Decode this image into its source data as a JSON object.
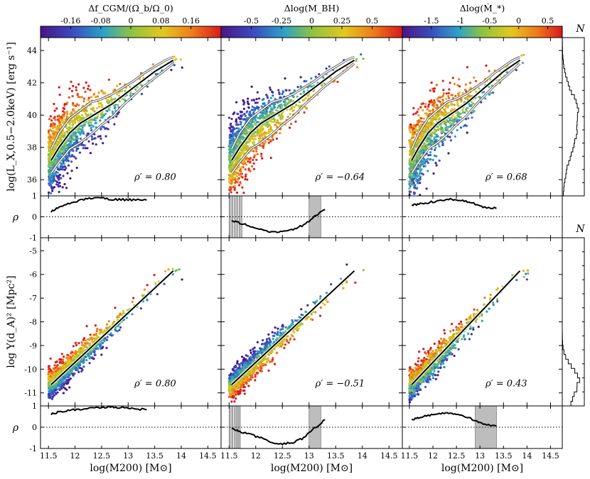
{
  "chart_data": {
    "type": "scatter",
    "description_colormap": "rainbow (purple-blue-green-yellow-orange-red)",
    "xlabel": "log(M200) [M⊙]",
    "xlim": [
      11.35,
      14.75
    ],
    "xticks": [
      11.5,
      12,
      12.5,
      13,
      13.5,
      14,
      14.5
    ],
    "xtick_labels": [
      "11.5",
      "12",
      "12.5",
      "13",
      "13.5",
      "14",
      "14.5"
    ],
    "top_rows": {
      "lx": {
        "ylabel": "log(L_X,0.5−2.0keV) [erg s⁻¹]",
        "ylim": [
          35.0,
          44.8
        ],
        "yticks": [
          36,
          38,
          40,
          42,
          44
        ],
        "ytick_labels": [
          "36",
          "38",
          "40",
          "42",
          "44"
        ],
        "median_x": [
          11.55,
          11.7,
          11.9,
          12.1,
          12.3,
          12.5,
          12.7,
          12.9,
          13.1,
          13.3,
          13.5,
          13.7,
          13.85
        ],
        "median_y": [
          37.2,
          38.0,
          38.9,
          39.5,
          39.9,
          40.3,
          40.7,
          41.2,
          41.7,
          42.2,
          42.7,
          43.1,
          43.4
        ],
        "spread_lo": [
          36.4,
          37.1,
          37.9,
          38.3,
          38.8,
          39.4,
          39.9,
          40.6,
          41.2,
          41.8,
          42.3,
          42.8,
          43.2
        ],
        "spread_hi": [
          37.9,
          38.9,
          39.8,
          40.3,
          40.8,
          41.0,
          41.3,
          41.7,
          42.1,
          42.6,
          43.0,
          43.4,
          43.6
        ]
      },
      "y": {
        "ylabel": "log Y(d_A)² [Mpc²]",
        "ylim": [
          -11.55,
          -4.45
        ],
        "yticks": [
          -11,
          -10,
          -9,
          -8,
          -7,
          -6,
          -5
        ],
        "ytick_labels": [
          "-11",
          "-10",
          "-9",
          "-8",
          "-7",
          "-6",
          "-5"
        ],
        "median_x": [
          11.55,
          13.85
        ],
        "median_y": [
          -10.65,
          -5.85
        ],
        "scatter_sigma": 0.28
      }
    },
    "rho_panels": {
      "ylabel": "ρ",
      "ylim": [
        -1,
        1
      ],
      "yticks": [
        1,
        0,
        -1
      ],
      "ytick_labels": [
        "1",
        "0",
        "-1"
      ]
    },
    "columns": [
      {
        "colorbar_label": "Δf_CGM/(Ω_b/Ω_0)",
        "colorbar_range": [
          -0.24,
          0.24
        ],
        "colorbar_ticks": [
          -0.16,
          -0.08,
          0,
          0.08,
          0.16
        ],
        "colorbar_tick_labels": [
          "-0.16",
          "-0.08",
          "0",
          "0.08",
          "0.16"
        ],
        "rho_prime_lx": "ρ′ = 0.80",
        "rho_prime_y": "ρ′ = 0.80",
        "rho_lx": {
          "x": [
            11.55,
            11.7,
            11.9,
            12.1,
            12.3,
            12.5,
            12.7,
            12.9,
            13.1,
            13.35
          ],
          "y": [
            0.25,
            0.45,
            0.65,
            0.8,
            0.9,
            0.92,
            0.82,
            0.82,
            0.8,
            0.8
          ]
        },
        "rho_y": {
          "x": [
            11.55,
            11.7,
            11.9,
            12.1,
            12.3,
            12.5,
            12.7,
            12.9,
            13.1,
            13.35
          ],
          "y": [
            0.62,
            0.72,
            0.8,
            0.85,
            0.9,
            0.94,
            0.95,
            0.92,
            0.88,
            0.82
          ]
        },
        "shaded_lx": [],
        "shaded_y": []
      },
      {
        "colorbar_label": "Δlog(M_BH)",
        "colorbar_range": [
          -0.75,
          0.75
        ],
        "colorbar_ticks": [
          -0.5,
          -0.25,
          0,
          0.25,
          0.5
        ],
        "colorbar_tick_labels": [
          "-0.5",
          "-0.25",
          "0",
          "0.25",
          "0.5"
        ],
        "rho_prime_lx": "ρ′ = −0.64",
        "rho_prime_y": "ρ′ = −0.51",
        "rho_lx": {
          "x": [
            11.55,
            11.7,
            11.9,
            12.1,
            12.3,
            12.5,
            12.7,
            12.9,
            13.1,
            13.3
          ],
          "y": [
            -0.2,
            -0.3,
            -0.45,
            -0.6,
            -0.72,
            -0.72,
            -0.6,
            -0.4,
            0.0,
            0.35
          ]
        },
        "rho_y": {
          "x": [
            11.55,
            11.7,
            11.9,
            12.1,
            12.3,
            12.5,
            12.7,
            12.9,
            13.1,
            13.3
          ],
          "y": [
            -0.05,
            -0.2,
            -0.35,
            -0.5,
            -0.7,
            -0.78,
            -0.72,
            -0.5,
            -0.05,
            0.35
          ]
        },
        "shaded_lx": [
          [
            11.5,
            11.57
          ],
          [
            11.6,
            11.66
          ],
          [
            11.69,
            11.74
          ],
          [
            13.0,
            13.22
          ]
        ],
        "shaded_y": [
          [
            11.5,
            11.57
          ],
          [
            11.6,
            11.65
          ],
          [
            11.67,
            11.71
          ],
          [
            13.0,
            13.22
          ]
        ]
      },
      {
        "colorbar_label": "Δlog(Ṁ_*)",
        "colorbar_range": [
          -2.0,
          0.75
        ],
        "colorbar_ticks": [
          -1.5,
          -1,
          -0.5,
          0,
          0.5
        ],
        "colorbar_tick_labels": [
          "-1.5",
          "-1",
          "-0.5",
          "0",
          "0.5"
        ],
        "rho_prime_lx": "ρ′ = 0.68",
        "rho_prime_y": "ρ′ = 0.43",
        "rho_lx": {
          "x": [
            11.55,
            11.7,
            11.9,
            12.1,
            12.3,
            12.5,
            12.7,
            12.9,
            13.1,
            13.35
          ],
          "y": [
            0.55,
            0.6,
            0.68,
            0.75,
            0.85,
            0.8,
            0.75,
            0.6,
            0.45,
            0.4
          ]
        },
        "rho_y": {
          "x": [
            11.55,
            11.7,
            11.9,
            12.1,
            12.3,
            12.5,
            12.7,
            12.9,
            13.1,
            13.35
          ],
          "y": [
            0.35,
            0.45,
            0.55,
            0.62,
            0.7,
            0.62,
            0.5,
            0.3,
            0.15,
            0.05
          ]
        },
        "shaded_lx": [],
        "shaded_y": [
          [
            12.9,
            13.35
          ]
        ]
      }
    ],
    "histogram_label": "N"
  }
}
